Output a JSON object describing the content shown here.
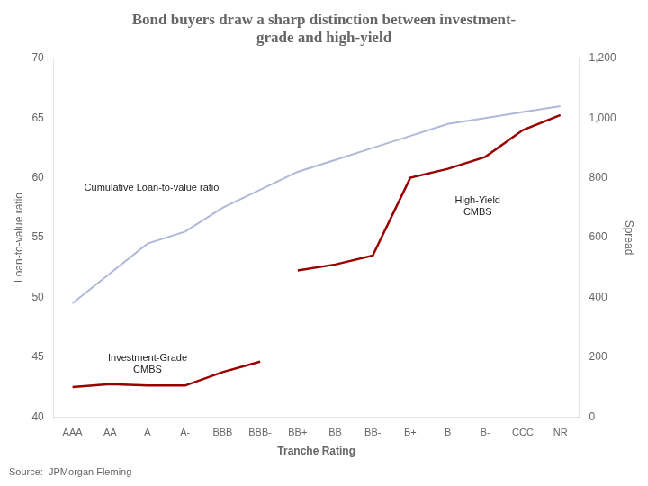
{
  "chart_data": {
    "type": "line",
    "title": "Bond buyers draw a sharp distinction between investment-\ngrade and high-yield",
    "categories": [
      "AAA",
      "AA",
      "A",
      "A-",
      "BBB",
      "BBB-",
      "BB+",
      "BB",
      "BB-",
      "B+",
      "B",
      "B-",
      "CCC",
      "NR"
    ],
    "xlabel": "Tranche Rating",
    "ylabel": "Loan-to-value ratio",
    "y2label": "Spread",
    "ylim": [
      40,
      70
    ],
    "yticks": [
      40,
      45,
      50,
      55,
      60,
      65,
      70
    ],
    "y2lim": [
      0,
      1200
    ],
    "y2ticks": [
      0,
      200,
      400,
      600,
      800,
      1000,
      1200
    ],
    "grid": false,
    "series": [
      {
        "name": "Cumulative Loan-to-value ratio",
        "color": "#b0b8d8",
        "marker": "none",
        "values": [
          49.5,
          52.0,
          54.5,
          55.5,
          57.5,
          59.0,
          60.5,
          61.5,
          62.5,
          63.5,
          64.5,
          65.0,
          65.5,
          66.0
        ]
      },
      {
        "name": "Investment-Grade\nCMBS",
        "color": "#990000",
        "marker": "none",
        "axis": "y2",
        "values": [
          100,
          110,
          105,
          105,
          150,
          185,
          null,
          null,
          null,
          null,
          null,
          null,
          null,
          null
        ]
      },
      {
        "name": "High-Yield\nCMBS",
        "color": "#990000",
        "marker": "none",
        "axis": "y2",
        "values": [
          null,
          null,
          null,
          null,
          null,
          null,
          490,
          510,
          540,
          800,
          830,
          870,
          960,
          1010
        ]
      }
    ],
    "annotations": [
      "Source:  JPMorgan Fleming"
    ]
  }
}
